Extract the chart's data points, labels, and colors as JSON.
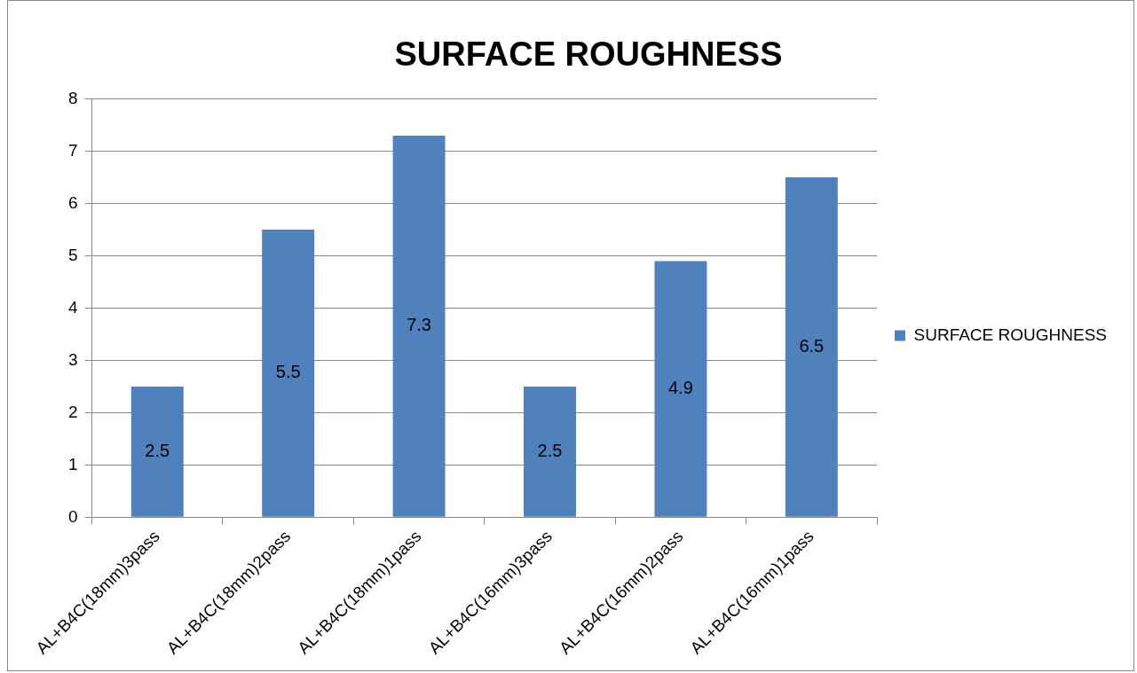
{
  "chart_data": {
    "type": "bar",
    "title": "SURFACE ROUGHNESS",
    "categories": [
      "AL+B4C(18mm)3pass",
      "AL+B4C(18mm)2pass",
      "AL+B4C(18mm)1pass",
      "AL+B4C(16mm)3pass",
      "AL+B4C(16mm)2pass",
      "AL+B4C(16mm)1pass"
    ],
    "series": [
      {
        "name": "SURFACE ROUGHNESS",
        "color": "#4f81bd",
        "values": [
          2.5,
          5.5,
          7.3,
          2.5,
          4.9,
          6.5
        ]
      }
    ],
    "ylim": [
      0,
      8
    ],
    "yticks": [
      0,
      1,
      2,
      3,
      4,
      5,
      6,
      7,
      8
    ],
    "grid": "y",
    "legend": "right",
    "data_labels": true
  }
}
